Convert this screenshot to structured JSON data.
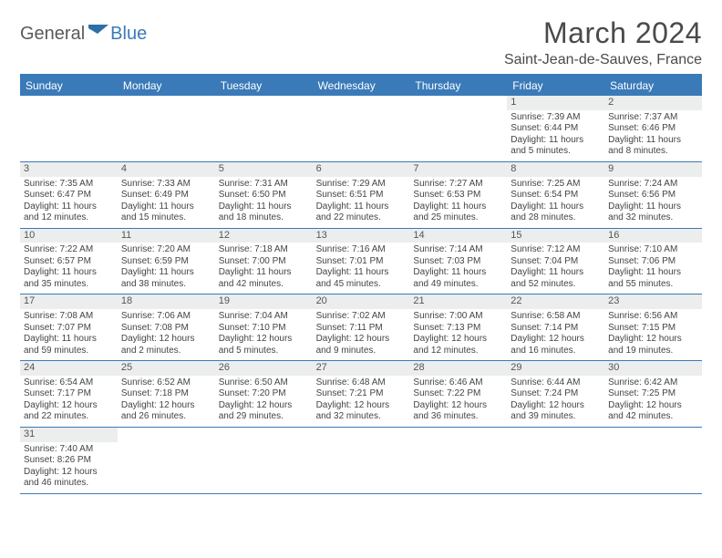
{
  "brand": {
    "part1": "General",
    "part2": "Blue"
  },
  "title": "March 2024",
  "location": "Saint-Jean-de-Sauves, France",
  "day_names": [
    "Sunday",
    "Monday",
    "Tuesday",
    "Wednesday",
    "Thursday",
    "Friday",
    "Saturday"
  ],
  "colors": {
    "accent": "#3a7ab8",
    "header_text": "#ffffff",
    "daynum_bg": "#eceded",
    "text": "#444444"
  },
  "weeks": [
    [
      null,
      null,
      null,
      null,
      null,
      {
        "n": "1",
        "sr": "Sunrise: 7:39 AM",
        "ss": "Sunset: 6:44 PM",
        "dl": "Daylight: 11 hours and 5 minutes."
      },
      {
        "n": "2",
        "sr": "Sunrise: 7:37 AM",
        "ss": "Sunset: 6:46 PM",
        "dl": "Daylight: 11 hours and 8 minutes."
      }
    ],
    [
      {
        "n": "3",
        "sr": "Sunrise: 7:35 AM",
        "ss": "Sunset: 6:47 PM",
        "dl": "Daylight: 11 hours and 12 minutes."
      },
      {
        "n": "4",
        "sr": "Sunrise: 7:33 AM",
        "ss": "Sunset: 6:49 PM",
        "dl": "Daylight: 11 hours and 15 minutes."
      },
      {
        "n": "5",
        "sr": "Sunrise: 7:31 AM",
        "ss": "Sunset: 6:50 PM",
        "dl": "Daylight: 11 hours and 18 minutes."
      },
      {
        "n": "6",
        "sr": "Sunrise: 7:29 AM",
        "ss": "Sunset: 6:51 PM",
        "dl": "Daylight: 11 hours and 22 minutes."
      },
      {
        "n": "7",
        "sr": "Sunrise: 7:27 AM",
        "ss": "Sunset: 6:53 PM",
        "dl": "Daylight: 11 hours and 25 minutes."
      },
      {
        "n": "8",
        "sr": "Sunrise: 7:25 AM",
        "ss": "Sunset: 6:54 PM",
        "dl": "Daylight: 11 hours and 28 minutes."
      },
      {
        "n": "9",
        "sr": "Sunrise: 7:24 AM",
        "ss": "Sunset: 6:56 PM",
        "dl": "Daylight: 11 hours and 32 minutes."
      }
    ],
    [
      {
        "n": "10",
        "sr": "Sunrise: 7:22 AM",
        "ss": "Sunset: 6:57 PM",
        "dl": "Daylight: 11 hours and 35 minutes."
      },
      {
        "n": "11",
        "sr": "Sunrise: 7:20 AM",
        "ss": "Sunset: 6:59 PM",
        "dl": "Daylight: 11 hours and 38 minutes."
      },
      {
        "n": "12",
        "sr": "Sunrise: 7:18 AM",
        "ss": "Sunset: 7:00 PM",
        "dl": "Daylight: 11 hours and 42 minutes."
      },
      {
        "n": "13",
        "sr": "Sunrise: 7:16 AM",
        "ss": "Sunset: 7:01 PM",
        "dl": "Daylight: 11 hours and 45 minutes."
      },
      {
        "n": "14",
        "sr": "Sunrise: 7:14 AM",
        "ss": "Sunset: 7:03 PM",
        "dl": "Daylight: 11 hours and 49 minutes."
      },
      {
        "n": "15",
        "sr": "Sunrise: 7:12 AM",
        "ss": "Sunset: 7:04 PM",
        "dl": "Daylight: 11 hours and 52 minutes."
      },
      {
        "n": "16",
        "sr": "Sunrise: 7:10 AM",
        "ss": "Sunset: 7:06 PM",
        "dl": "Daylight: 11 hours and 55 minutes."
      }
    ],
    [
      {
        "n": "17",
        "sr": "Sunrise: 7:08 AM",
        "ss": "Sunset: 7:07 PM",
        "dl": "Daylight: 11 hours and 59 minutes."
      },
      {
        "n": "18",
        "sr": "Sunrise: 7:06 AM",
        "ss": "Sunset: 7:08 PM",
        "dl": "Daylight: 12 hours and 2 minutes."
      },
      {
        "n": "19",
        "sr": "Sunrise: 7:04 AM",
        "ss": "Sunset: 7:10 PM",
        "dl": "Daylight: 12 hours and 5 minutes."
      },
      {
        "n": "20",
        "sr": "Sunrise: 7:02 AM",
        "ss": "Sunset: 7:11 PM",
        "dl": "Daylight: 12 hours and 9 minutes."
      },
      {
        "n": "21",
        "sr": "Sunrise: 7:00 AM",
        "ss": "Sunset: 7:13 PM",
        "dl": "Daylight: 12 hours and 12 minutes."
      },
      {
        "n": "22",
        "sr": "Sunrise: 6:58 AM",
        "ss": "Sunset: 7:14 PM",
        "dl": "Daylight: 12 hours and 16 minutes."
      },
      {
        "n": "23",
        "sr": "Sunrise: 6:56 AM",
        "ss": "Sunset: 7:15 PM",
        "dl": "Daylight: 12 hours and 19 minutes."
      }
    ],
    [
      {
        "n": "24",
        "sr": "Sunrise: 6:54 AM",
        "ss": "Sunset: 7:17 PM",
        "dl": "Daylight: 12 hours and 22 minutes."
      },
      {
        "n": "25",
        "sr": "Sunrise: 6:52 AM",
        "ss": "Sunset: 7:18 PM",
        "dl": "Daylight: 12 hours and 26 minutes."
      },
      {
        "n": "26",
        "sr": "Sunrise: 6:50 AM",
        "ss": "Sunset: 7:20 PM",
        "dl": "Daylight: 12 hours and 29 minutes."
      },
      {
        "n": "27",
        "sr": "Sunrise: 6:48 AM",
        "ss": "Sunset: 7:21 PM",
        "dl": "Daylight: 12 hours and 32 minutes."
      },
      {
        "n": "28",
        "sr": "Sunrise: 6:46 AM",
        "ss": "Sunset: 7:22 PM",
        "dl": "Daylight: 12 hours and 36 minutes."
      },
      {
        "n": "29",
        "sr": "Sunrise: 6:44 AM",
        "ss": "Sunset: 7:24 PM",
        "dl": "Daylight: 12 hours and 39 minutes."
      },
      {
        "n": "30",
        "sr": "Sunrise: 6:42 AM",
        "ss": "Sunset: 7:25 PM",
        "dl": "Daylight: 12 hours and 42 minutes."
      }
    ],
    [
      {
        "n": "31",
        "sr": "Sunrise: 7:40 AM",
        "ss": "Sunset: 8:26 PM",
        "dl": "Daylight: 12 hours and 46 minutes."
      },
      null,
      null,
      null,
      null,
      null,
      null
    ]
  ]
}
